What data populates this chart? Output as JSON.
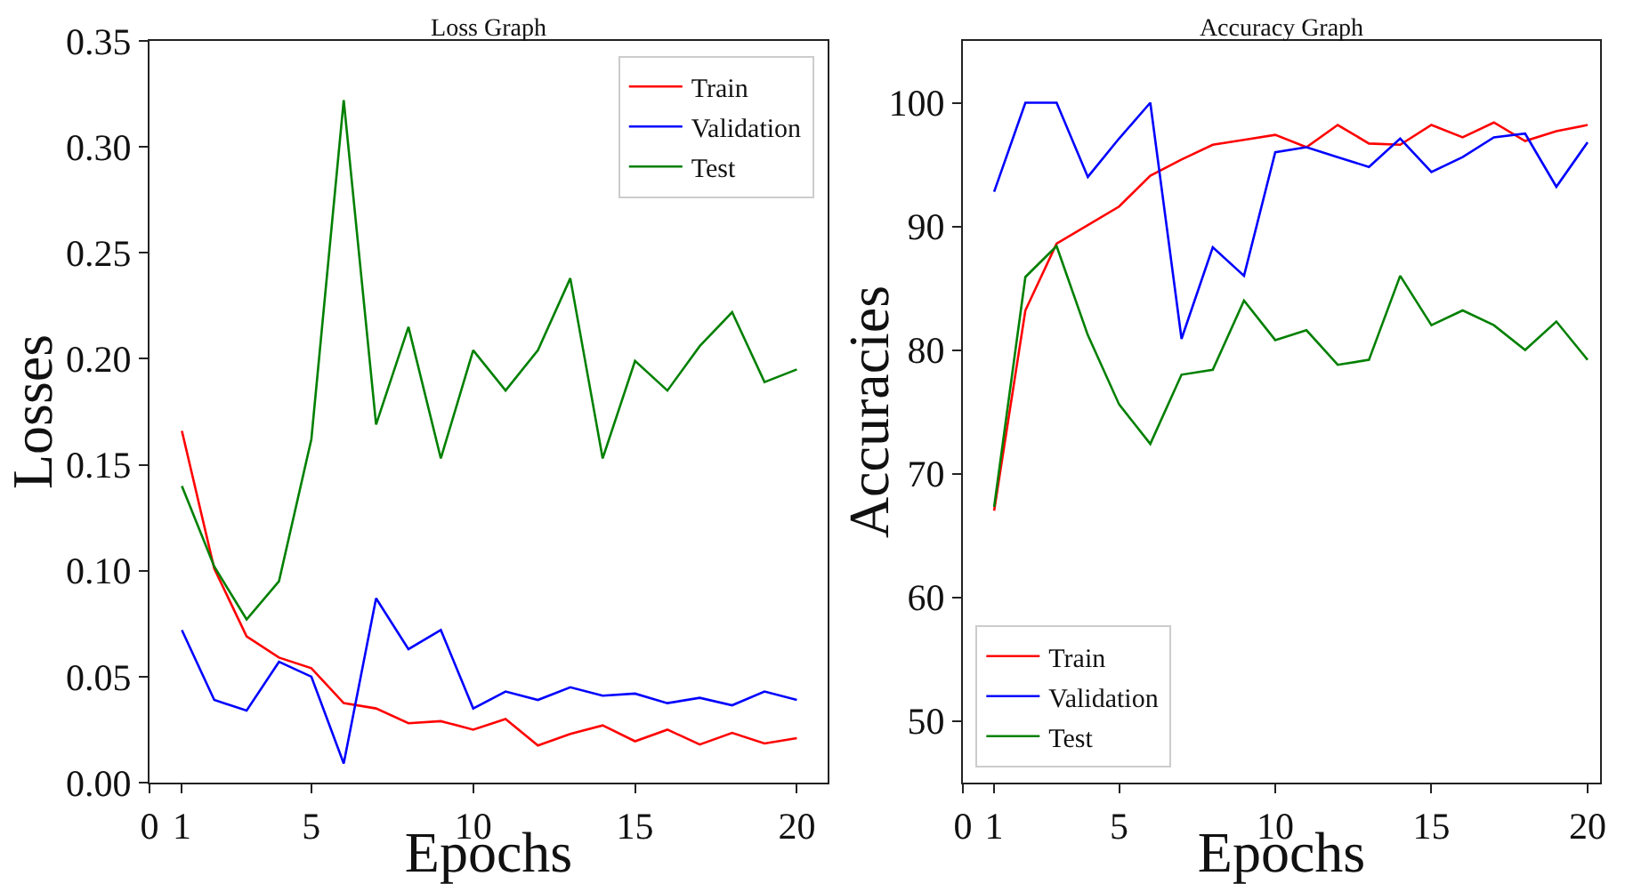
{
  "chart_data": [
    {
      "type": "line",
      "title": "Loss Graph",
      "xlabel": "Epochs",
      "ylabel": "Losses",
      "x": [
        1,
        2,
        3,
        4,
        5,
        6,
        7,
        8,
        9,
        10,
        11,
        12,
        13,
        14,
        15,
        16,
        17,
        18,
        19,
        20
      ],
      "xlim": [
        0,
        20.95
      ],
      "xticks": [
        0,
        1,
        5,
        10,
        15,
        20
      ],
      "ylim": [
        0,
        0.35
      ],
      "yticks": [
        {
          "value": 0,
          "label": "0.00"
        },
        {
          "value": 0.05,
          "label": "0.05"
        },
        {
          "value": 0.1,
          "label": "0.10"
        },
        {
          "value": 0.15,
          "label": "0.15"
        },
        {
          "value": 0.2,
          "label": "0.20"
        },
        {
          "value": 0.25,
          "label": "0.25"
        },
        {
          "value": 0.3,
          "label": "0.30"
        },
        {
          "value": 0.35,
          "label": "0.35"
        }
      ],
      "grid": false,
      "legend": "top right",
      "series": [
        {
          "name": "Train",
          "color": "#ff0000",
          "values": [
            0.166,
            0.101,
            0.069,
            0.059,
            0.054,
            0.0375,
            0.035,
            0.028,
            0.029,
            0.025,
            0.03,
            0.0175,
            0.023,
            0.027,
            0.0195,
            0.025,
            0.018,
            0.0235,
            0.0185,
            0.021
          ]
        },
        {
          "name": "Validation",
          "color": "#0000ff",
          "values": [
            0.072,
            0.039,
            0.034,
            0.057,
            0.05,
            0.009,
            0.087,
            0.063,
            0.072,
            0.035,
            0.043,
            0.039,
            0.045,
            0.041,
            0.042,
            0.0375,
            0.04,
            0.0365,
            0.043,
            0.039
          ]
        },
        {
          "name": "Test",
          "color": "#008000",
          "values": [
            0.14,
            0.102,
            0.077,
            0.095,
            0.162,
            0.322,
            0.169,
            0.215,
            0.153,
            0.204,
            0.185,
            0.204,
            0.238,
            0.153,
            0.199,
            0.185,
            0.206,
            0.222,
            0.189,
            0.195
          ]
        }
      ]
    },
    {
      "type": "line",
      "title": "Accuracy Graph",
      "xlabel": "Epochs",
      "ylabel": "Accuracies",
      "x": [
        1,
        2,
        3,
        4,
        5,
        6,
        7,
        8,
        9,
        10,
        11,
        12,
        13,
        14,
        15,
        16,
        17,
        18,
        19,
        20
      ],
      "xlim": [
        0,
        20.4
      ],
      "xticks": [
        0,
        1,
        5,
        10,
        15,
        20
      ],
      "ylim": [
        45,
        105
      ],
      "yticks": [
        50,
        60,
        70,
        80,
        90,
        100
      ],
      "grid": false,
      "legend": "bottom left",
      "series": [
        {
          "name": "Train",
          "color": "#ff0000",
          "values": [
            67,
            83.2,
            88.6,
            90.1,
            91.6,
            94.1,
            95.4,
            96.6,
            97.0,
            97.4,
            96.4,
            98.2,
            96.7,
            96.6,
            98.2,
            97.2,
            98.4,
            96.9,
            97.7,
            98.2
          ]
        },
        {
          "name": "Validation",
          "color": "#0000ff",
          "values": [
            92.8,
            100,
            100,
            94.0,
            97.1,
            100,
            80.9,
            88.3,
            86.0,
            96.0,
            96.4,
            95.6,
            94.8,
            97.1,
            94.4,
            95.6,
            97.2,
            97.5,
            93.2,
            96.8
          ]
        },
        {
          "name": "Test",
          "color": "#008000",
          "values": [
            67.3,
            85.9,
            88.4,
            81.2,
            75.6,
            72.4,
            78.0,
            78.4,
            84.0,
            80.8,
            81.6,
            78.8,
            79.2,
            86.0,
            82.0,
            83.2,
            82.0,
            80.0,
            82.3,
            79.2
          ]
        }
      ]
    }
  ]
}
